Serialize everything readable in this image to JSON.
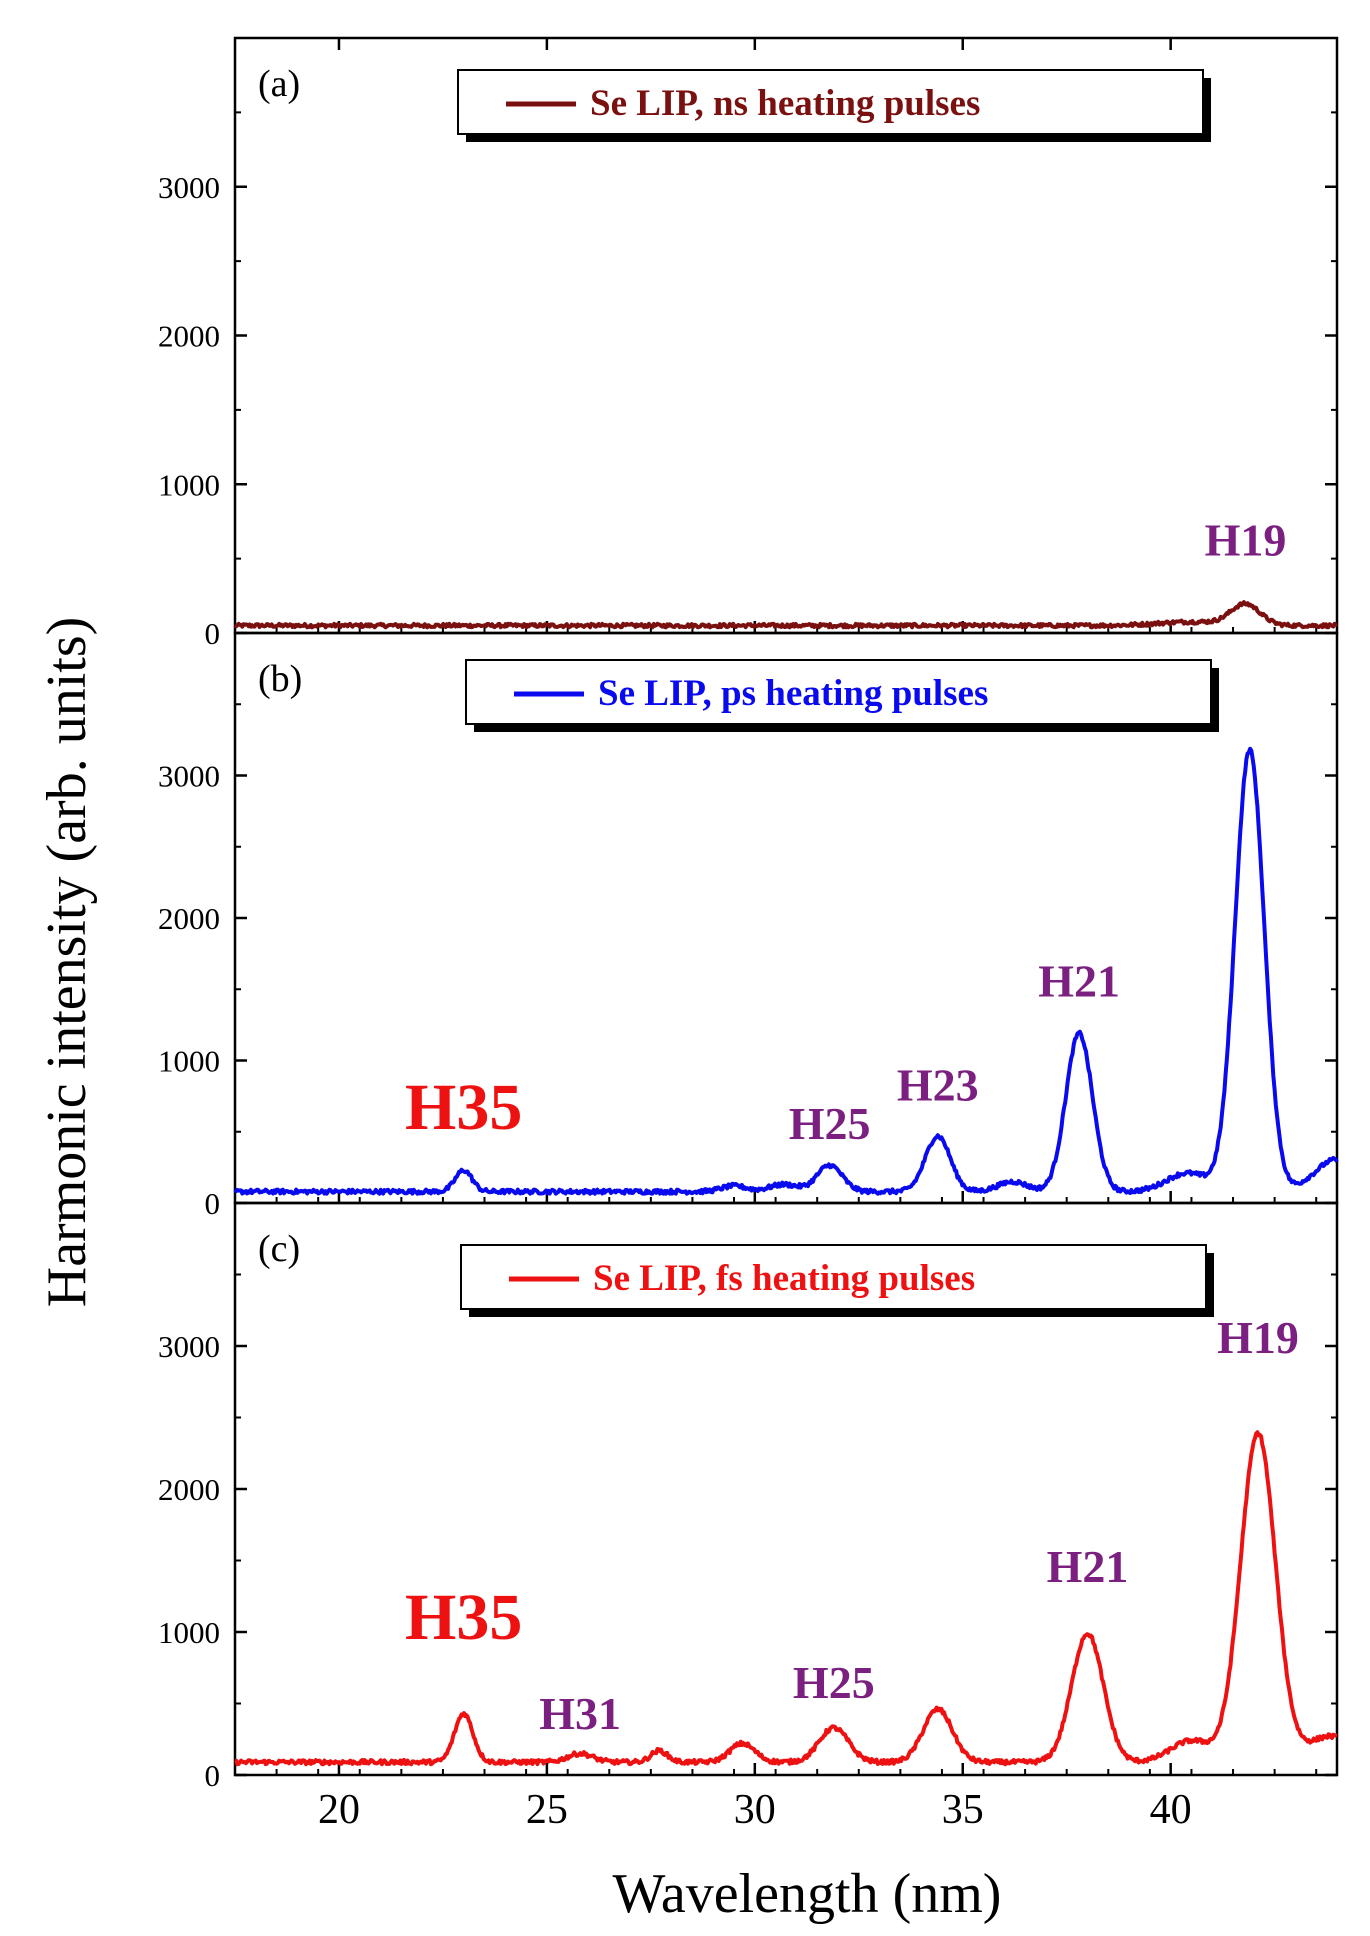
{
  "figure": {
    "xlabel": "Wavelength (nm)",
    "ylabel": "Harmonic intensity (arb. units)"
  },
  "chart_data": [
    {
      "type": "line",
      "panel_label": "(a)",
      "xlim": [
        17.5,
        44
      ],
      "ylim": [
        0,
        4000
      ],
      "x_ticks": [
        20,
        25,
        30,
        35,
        40
      ],
      "y_ticks": [
        0,
        1000,
        2000,
        3000
      ],
      "y_tick_labels": [
        "0",
        "1000",
        "2000",
        "3000"
      ],
      "legend": {
        "label": "Se LIP, ns heating pulses",
        "color": "#7a1010",
        "placement": "top-center"
      },
      "series": [
        {
          "name": "Se LIP, ns heating pulses",
          "color": "#7a1010",
          "baseline": 50,
          "noise": 12,
          "peaks": [
            {
              "center": 40.5,
              "height": 25,
              "width": 0.8
            },
            {
              "center": 41.8,
              "height": 140,
              "width": 0.35
            }
          ]
        }
      ],
      "annotations": [
        {
          "text": "H19",
          "x": 41.8,
          "y": 520,
          "color": "#7b2080",
          "size": "medium"
        }
      ]
    },
    {
      "type": "line",
      "panel_label": "(b)",
      "xlim": [
        17.5,
        44
      ],
      "ylim": [
        0,
        4000
      ],
      "x_ticks": [
        20,
        25,
        30,
        35,
        40
      ],
      "y_ticks": [
        0,
        1000,
        2000,
        3000
      ],
      "y_tick_labels": [
        "0",
        "1000",
        "2000",
        "3000"
      ],
      "legend": {
        "label": "Se LIP, ps heating pulses",
        "color": "#0a0aee",
        "placement": "top-center"
      },
      "series": [
        {
          "name": "Se LIP, ps heating pulses",
          "color": "#0a0aee",
          "baseline": 80,
          "noise": 15,
          "peaks": [
            {
              "center": 23.0,
              "height": 150,
              "width": 0.2
            },
            {
              "center": 29.5,
              "height": 40,
              "width": 0.3
            },
            {
              "center": 30.7,
              "height": 50,
              "width": 0.35
            },
            {
              "center": 31.8,
              "height": 185,
              "width": 0.3
            },
            {
              "center": 34.4,
              "height": 390,
              "width": 0.3
            },
            {
              "center": 36.2,
              "height": 70,
              "width": 0.35
            },
            {
              "center": 37.8,
              "height": 1110,
              "width": 0.32
            },
            {
              "center": 40.4,
              "height": 130,
              "width": 0.5
            },
            {
              "center": 41.9,
              "height": 3100,
              "width": 0.35
            },
            {
              "center": 43.5,
              "height": 100,
              "width": 0.35
            },
            {
              "center": 44.0,
              "height": 180,
              "width": 0.3
            }
          ]
        }
      ],
      "annotations": [
        {
          "text": "H35",
          "x": 23.0,
          "y": 520,
          "color": "#ee1111",
          "size": "large"
        },
        {
          "text": "H25",
          "x": 31.8,
          "y": 450,
          "color": "#7b2080",
          "size": "medium"
        },
        {
          "text": "H23",
          "x": 34.4,
          "y": 720,
          "color": "#7b2080",
          "size": "medium"
        },
        {
          "text": "H21",
          "x": 37.8,
          "y": 1450,
          "color": "#7b2080",
          "size": "medium"
        }
      ]
    },
    {
      "type": "line",
      "panel_label": "(c)",
      "xlim": [
        17.5,
        44
      ],
      "ylim": [
        0,
        4000
      ],
      "x_ticks": [
        20,
        25,
        30,
        35,
        40
      ],
      "y_ticks": [
        0,
        1000,
        2000,
        3000
      ],
      "y_tick_labels": [
        "0",
        "1000",
        "2000",
        "3000"
      ],
      "legend": {
        "label": "Se LIP, fs heating pulses",
        "color": "#ee1111",
        "placement": "top-center"
      },
      "series": [
        {
          "name": "Se LIP, fs heating pulses",
          "color": "#ee1111",
          "baseline": 90,
          "noise": 15,
          "peaks": [
            {
              "center": 23.0,
              "height": 340,
              "width": 0.22
            },
            {
              "center": 25.8,
              "height": 60,
              "width": 0.3
            },
            {
              "center": 27.7,
              "height": 80,
              "width": 0.2
            },
            {
              "center": 29.7,
              "height": 130,
              "width": 0.3
            },
            {
              "center": 31.9,
              "height": 240,
              "width": 0.35
            },
            {
              "center": 34.4,
              "height": 370,
              "width": 0.35
            },
            {
              "center": 38.0,
              "height": 900,
              "width": 0.38
            },
            {
              "center": 40.5,
              "height": 150,
              "width": 0.5
            },
            {
              "center": 42.1,
              "height": 2300,
              "width": 0.42
            },
            {
              "center": 43.5,
              "height": 110,
              "width": 0.45
            },
            {
              "center": 44.0,
              "height": 110,
              "width": 0.35
            }
          ]
        }
      ],
      "annotations": [
        {
          "text": "H35",
          "x": 23.0,
          "y": 950,
          "color": "#ee1111",
          "size": "large"
        },
        {
          "text": "H31",
          "x": 25.8,
          "y": 320,
          "color": "#7b2080",
          "size": "medium"
        },
        {
          "text": "H25",
          "x": 31.9,
          "y": 540,
          "color": "#7b2080",
          "size": "medium"
        },
        {
          "text": "H21",
          "x": 38.0,
          "y": 1350,
          "color": "#7b2080",
          "size": "medium"
        },
        {
          "text": "H19",
          "x": 42.1,
          "y": 2950,
          "color": "#7b2080",
          "size": "medium"
        }
      ]
    }
  ]
}
